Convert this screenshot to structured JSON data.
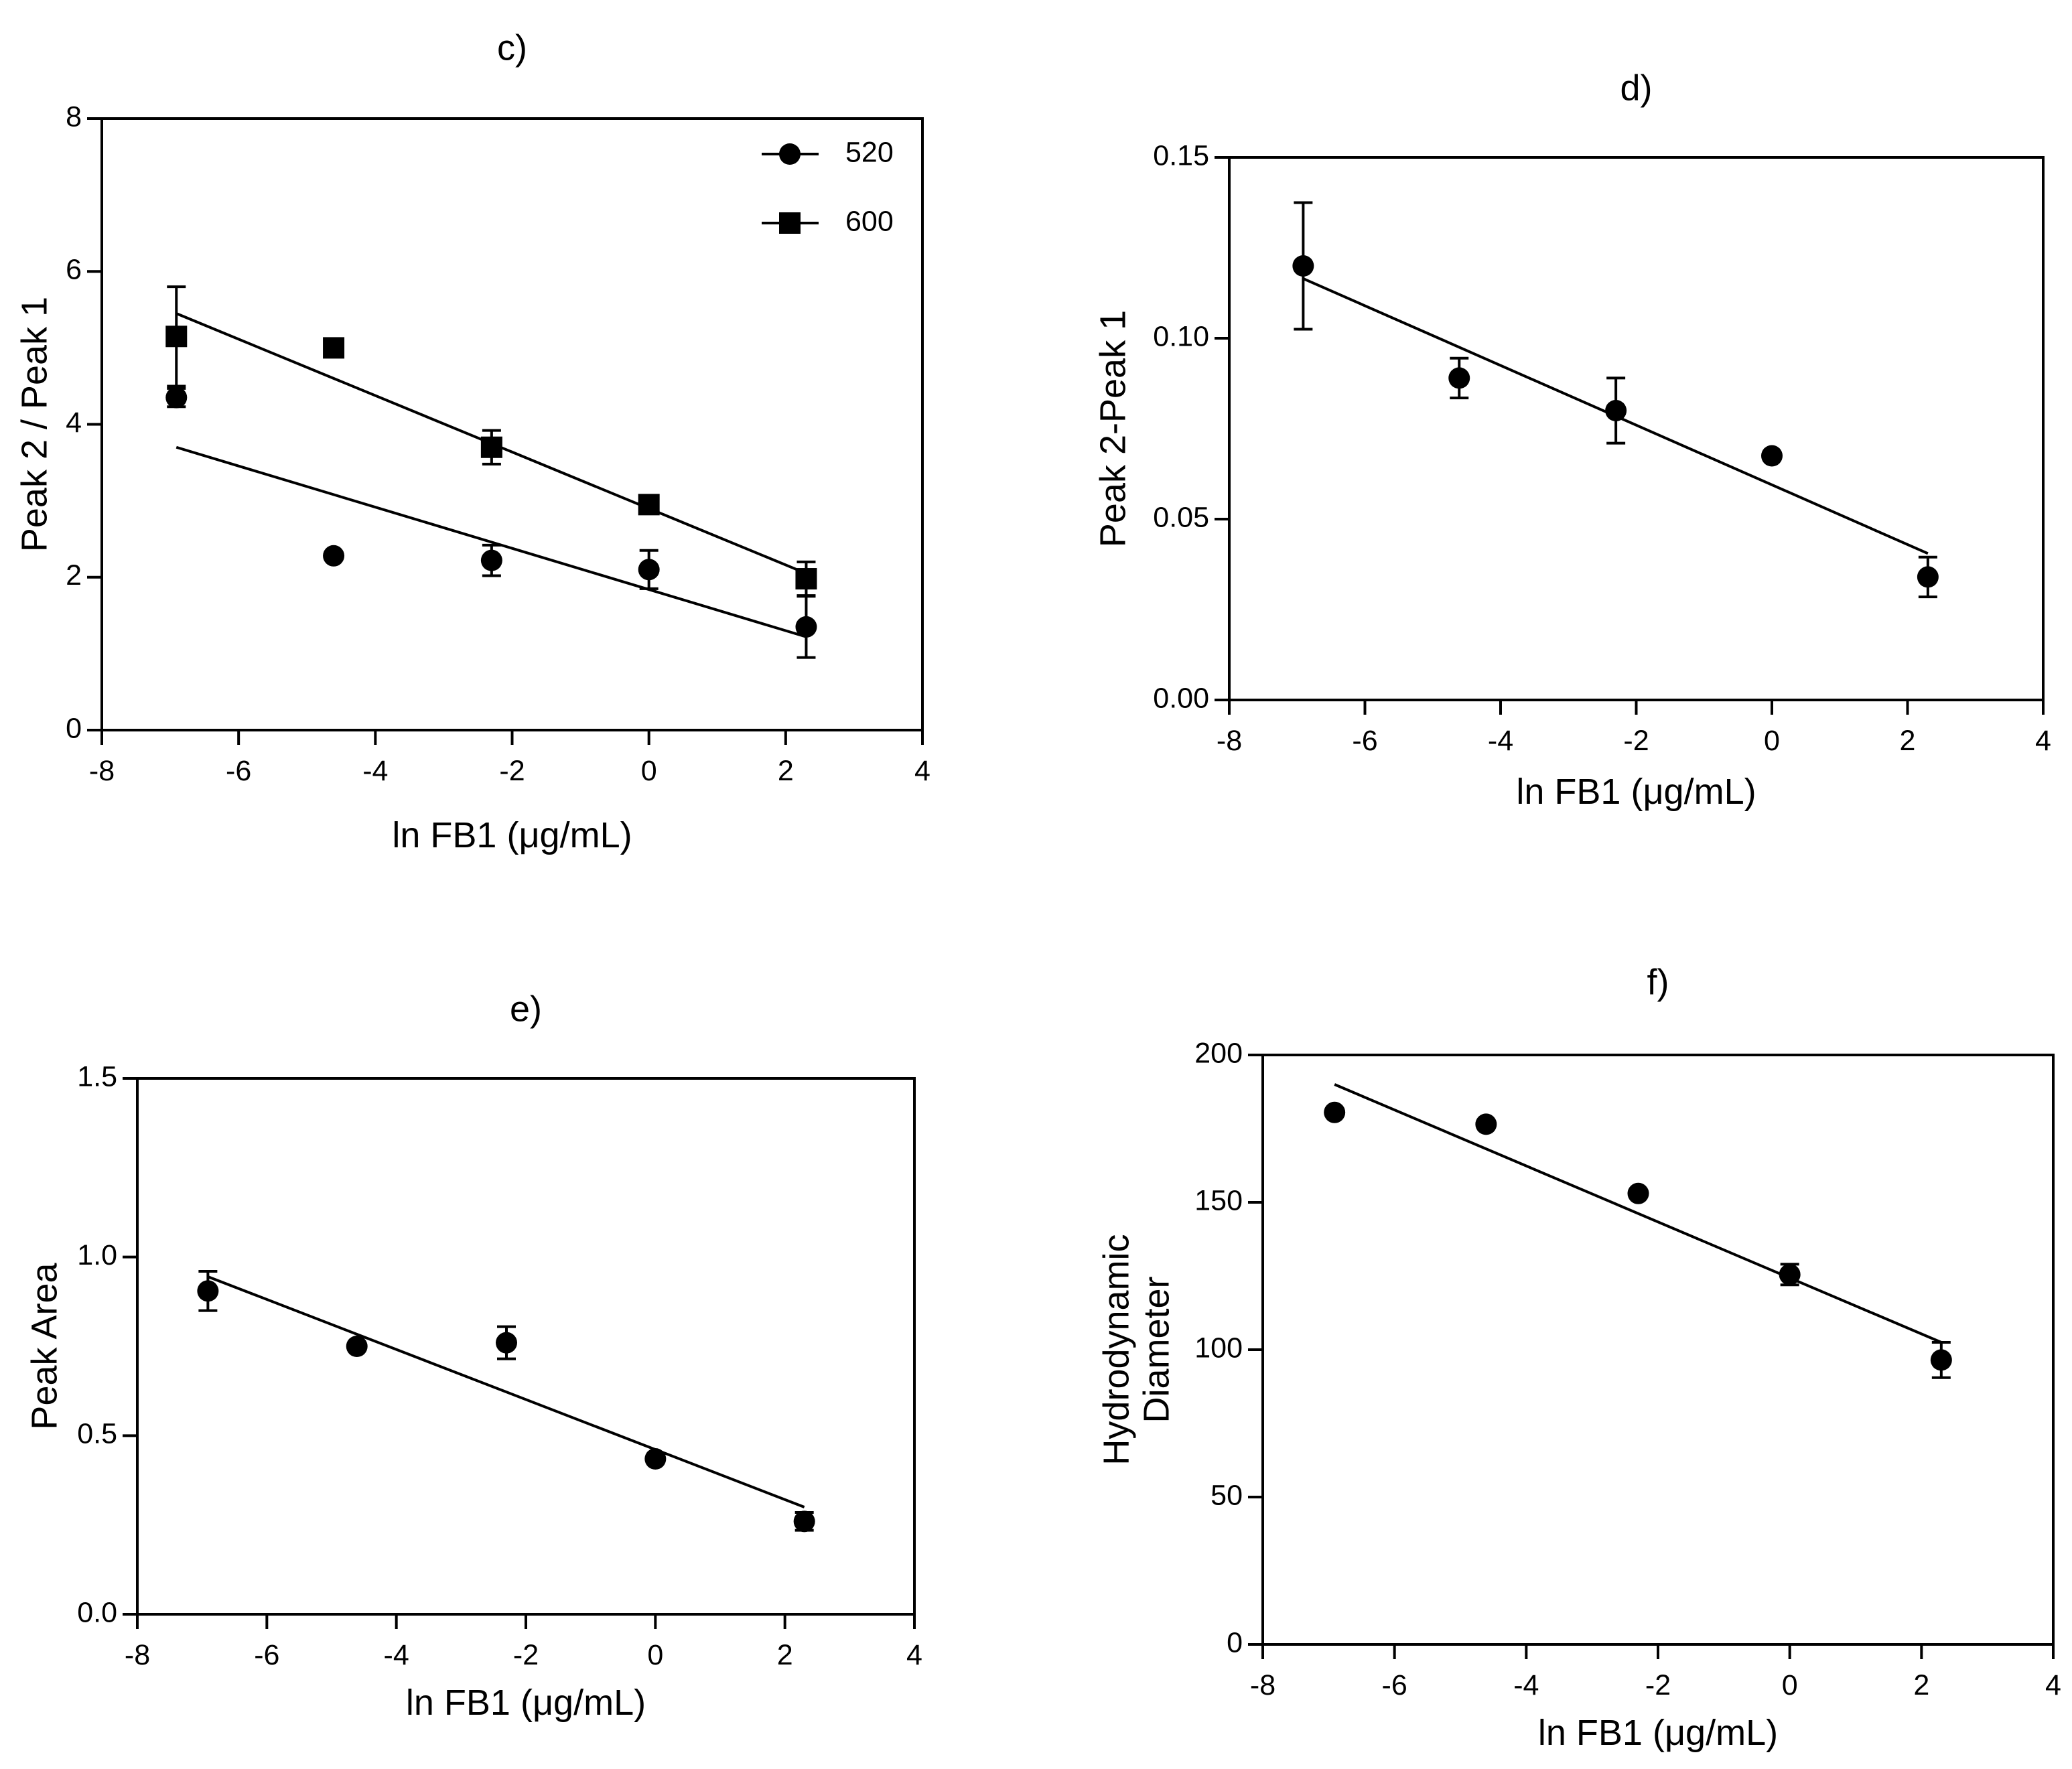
{
  "chart_data": [
    {
      "id": "c",
      "type": "scatter",
      "title": "c)",
      "xlabel": "ln FB1 (μg/mL)",
      "ylabel": "Peak 2 / Peak 1",
      "xlim": [
        -8,
        4
      ],
      "ylim": [
        0,
        8
      ],
      "xticks": [
        -8,
        -6,
        -4,
        -2,
        0,
        2,
        4
      ],
      "yticks": [
        0,
        2,
        4,
        6,
        8
      ],
      "ytick_labels": [
        "0",
        "2",
        "4",
        "6",
        "8"
      ],
      "legend": "top-right",
      "series": [
        {
          "name": "520",
          "marker": "circle",
          "x": [
            -6.91,
            -4.61,
            -2.3,
            0,
            2.3
          ],
          "y": [
            4.35,
            2.28,
            2.22,
            2.1,
            1.35
          ],
          "err": [
            0.12,
            0.05,
            0.2,
            0.25,
            0.4
          ],
          "fit": [
            [
              -6.91,
              3.7
            ],
            [
              2.3,
              1.22
            ]
          ]
        },
        {
          "name": "600",
          "marker": "square",
          "x": [
            -6.91,
            -4.61,
            -2.3,
            0,
            2.3
          ],
          "y": [
            5.15,
            5.0,
            3.7,
            2.95,
            1.98
          ],
          "err": [
            0.65,
            0.05,
            0.22,
            0.07,
            0.22
          ],
          "fit": [
            [
              -6.91,
              5.45
            ],
            [
              2.3,
              2.05
            ]
          ]
        }
      ]
    },
    {
      "id": "d",
      "type": "scatter",
      "title": "d)",
      "xlabel": "ln FB1 (μg/mL)",
      "ylabel": "Peak 2-Peak 1",
      "xlim": [
        -8,
        4
      ],
      "ylim": [
        0,
        0.15
      ],
      "xticks": [
        -8,
        -6,
        -4,
        -2,
        0,
        2,
        4
      ],
      "yticks": [
        0,
        0.05,
        0.1,
        0.15
      ],
      "ytick_labels": [
        "0.00",
        "0.05",
        "0.10",
        "0.15"
      ],
      "series": [
        {
          "name": "",
          "marker": "circle",
          "x": [
            -6.91,
            -4.61,
            -2.3,
            0,
            2.3
          ],
          "y": [
            0.12,
            0.089,
            0.08,
            0.0675,
            0.034
          ],
          "err": [
            0.0175,
            0.0055,
            0.009,
            0.0005,
            0.0055
          ],
          "fit": [
            [
              -6.91,
              0.1165
            ],
            [
              2.3,
              0.0405
            ]
          ]
        }
      ]
    },
    {
      "id": "e",
      "type": "scatter",
      "title": "e)",
      "xlabel": "ln FB1 (μg/mL)",
      "ylabel": "Peak Area",
      "xlim": [
        -8,
        4
      ],
      "ylim": [
        0,
        1.5
      ],
      "xticks": [
        -8,
        -6,
        -4,
        -2,
        0,
        2,
        4
      ],
      "yticks": [
        0,
        0.5,
        1.0,
        1.5
      ],
      "ytick_labels": [
        "0.0",
        "0.5",
        "1.0",
        "1.5"
      ],
      "series": [
        {
          "name": "",
          "marker": "circle",
          "x": [
            -6.91,
            -4.61,
            -2.3,
            0,
            2.3
          ],
          "y": [
            0.905,
            0.75,
            0.76,
            0.435,
            0.26
          ],
          "err": [
            0.055,
            0.005,
            0.045,
            0.005,
            0.025
          ],
          "fit": [
            [
              -6.91,
              0.945
            ],
            [
              2.3,
              0.3
            ]
          ]
        }
      ]
    },
    {
      "id": "f",
      "type": "scatter",
      "title": "f)",
      "xlabel": "ln FB1 (μg/mL)",
      "ylabel_lines": [
        "Hydrodynamic",
        "Diameter"
      ],
      "xlim": [
        -8,
        4
      ],
      "ylim": [
        0,
        200
      ],
      "xticks": [
        -8,
        -6,
        -4,
        -2,
        0,
        2,
        4
      ],
      "yticks": [
        0,
        50,
        100,
        150,
        200
      ],
      "ytick_labels": [
        "0",
        "50",
        "100",
        "150",
        "200"
      ],
      "series": [
        {
          "name": "",
          "marker": "circle",
          "x": [
            -6.91,
            -4.61,
            -2.3,
            0,
            2.3
          ],
          "y": [
            180.5,
            176.5,
            153,
            125.5,
            96.5
          ],
          "err": [
            1,
            1,
            1,
            3.5,
            6
          ],
          "fit": [
            [
              -6.91,
              190
            ],
            [
              2.3,
              102.5
            ]
          ]
        }
      ]
    }
  ]
}
